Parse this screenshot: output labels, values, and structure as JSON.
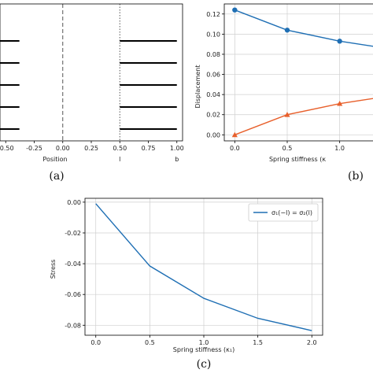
{
  "colors": {
    "blue": "#1f6fb4",
    "orange": "#e8602c",
    "grid": "#cfcfcf",
    "black": "#000000",
    "dashed": "#555555"
  },
  "chart_data": [
    {
      "id": "a",
      "panel_label": "(a)",
      "type": "line",
      "xlabel": "Position",
      "xticks": [
        "-0.50",
        "-0.25",
        "0.00",
        "0.25",
        "0.50",
        "0.75",
        "1.00"
      ],
      "xtick_values": [
        -0.5,
        -0.25,
        0.0,
        0.25,
        0.5,
        0.75,
        1.0
      ],
      "xlim": [
        -0.55,
        1.05
      ],
      "extra_labels": [
        {
          "text": "l",
          "x": 0.5
        },
        {
          "text": "b",
          "x": 1.0
        }
      ],
      "vlines": [
        {
          "x": 0.0,
          "style": "dashed"
        },
        {
          "x": 0.5,
          "style": "dotted"
        }
      ],
      "segments_y": [
        0.8,
        0.6,
        0.4,
        0.2,
        0.0
      ],
      "segments": [
        {
          "x0": -0.55,
          "x1": -0.38
        },
        {
          "x0": 0.5,
          "x1": 1.0
        }
      ],
      "grid": false
    },
    {
      "id": "b",
      "panel_label": "(b)",
      "type": "line",
      "xlabel": "Spring stiffness (κ",
      "ylabel": "Displacement",
      "xticks": [
        "0.0",
        "0.5",
        "1.0"
      ],
      "xtick_values": [
        0.0,
        0.5,
        1.0
      ],
      "yticks": [
        "0.00",
        "0.02",
        "0.04",
        "0.06",
        "0.08",
        "0.10",
        "0.12"
      ],
      "ytick_values": [
        0.0,
        0.02,
        0.04,
        0.06,
        0.08,
        0.1,
        0.12
      ],
      "xlim": [
        -0.1,
        1.4
      ],
      "ylim": [
        -0.006,
        0.13
      ],
      "grid": true,
      "series": [
        {
          "x": [
            0.0,
            0.5,
            1.0,
            1.5
          ],
          "values": [
            0.124,
            0.104,
            0.093,
            0.085
          ],
          "marker": "circle",
          "color": "#1f6fb4"
        },
        {
          "x": [
            0.0,
            0.5,
            1.0,
            1.5
          ],
          "values": [
            0.0,
            0.02,
            0.031,
            0.039
          ],
          "marker": "triangle",
          "color": "#e8602c"
        }
      ]
    },
    {
      "id": "c",
      "panel_label": "(c)",
      "type": "line",
      "xlabel": "Spring stiffness (κ₁)",
      "ylabel": "Stress",
      "xticks": [
        "0.0",
        "0.5",
        "1.0",
        "1.5",
        "2.0"
      ],
      "xtick_values": [
        0.0,
        0.5,
        1.0,
        1.5,
        2.0
      ],
      "yticks": [
        "0.00",
        "-0.02",
        "-0.04",
        "-0.06",
        "-0.08"
      ],
      "ytick_values": [
        0.0,
        -0.02,
        -0.04,
        -0.06,
        -0.08
      ],
      "xlim": [
        -0.1,
        2.1
      ],
      "ylim": [
        -0.0865,
        0.0025
      ],
      "grid": true,
      "legend": "top-right",
      "series": [
        {
          "name": "σ₁(−l) = σ₂(l)",
          "x": [
            0.0,
            0.5,
            1.0,
            1.5,
            2.0
          ],
          "values": [
            -0.001,
            -0.0415,
            -0.0625,
            -0.0755,
            -0.0835
          ],
          "color": "#1f6fb4"
        }
      ]
    }
  ]
}
